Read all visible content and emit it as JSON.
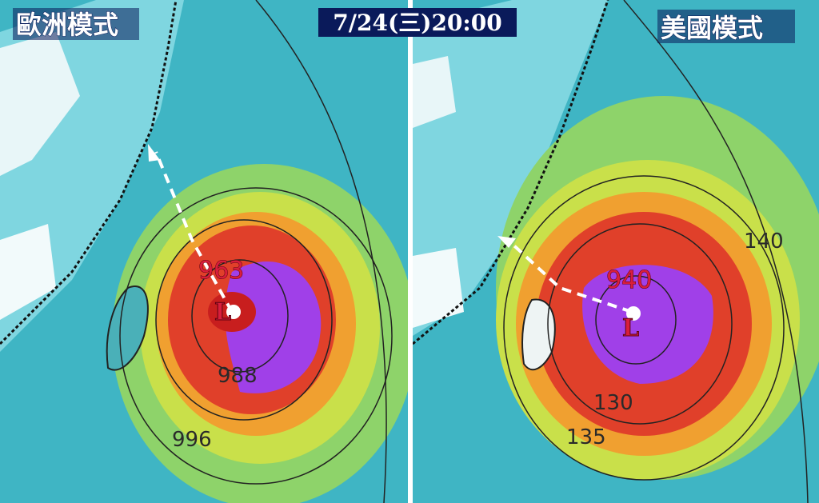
{
  "left_panel": {
    "label": "歐洲模式",
    "center_mark": "L",
    "pressure_labels": [
      "963",
      "988",
      "996"
    ]
  },
  "time": "7/24(三)20:00",
  "right_panel": {
    "label": "美國模式",
    "center_mark": "L",
    "pressure_labels": [
      "940",
      "130",
      "135",
      "140"
    ]
  }
}
